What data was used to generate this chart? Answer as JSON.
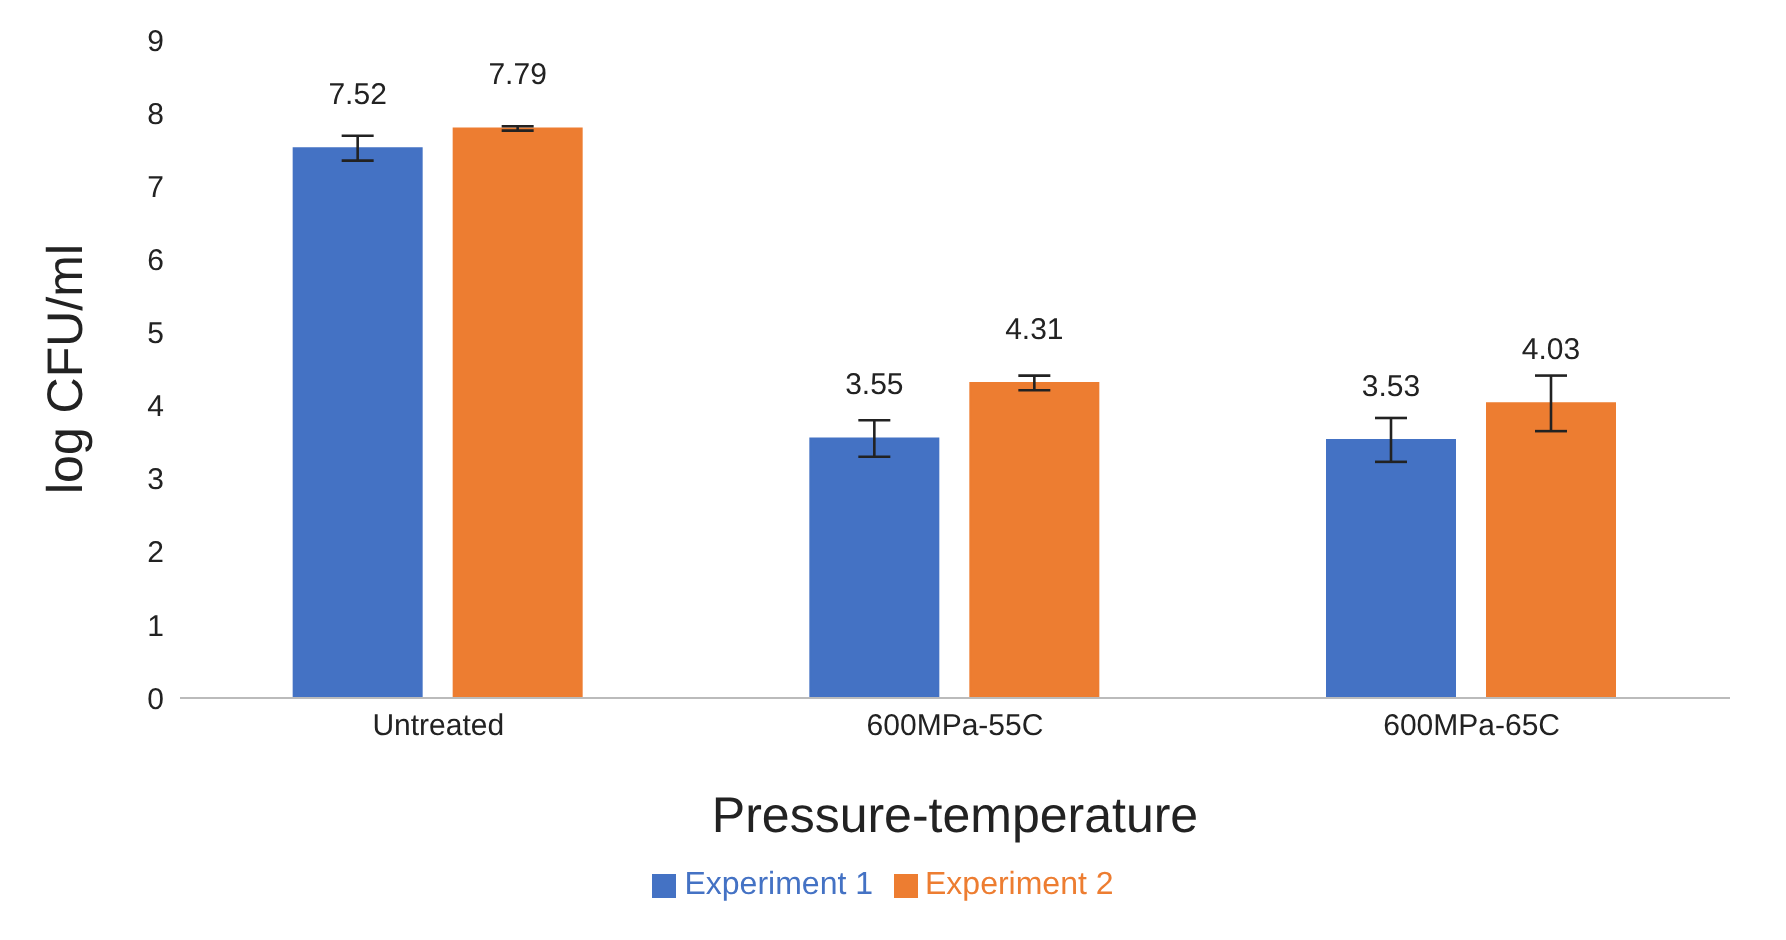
{
  "chart_data": {
    "type": "bar",
    "xlabel": "Pressure-temperature",
    "ylabel": "log CFU/ml",
    "categories": [
      "Untreated",
      "600MPa-55C",
      "600MPa-65C"
    ],
    "series": [
      {
        "name": "Experiment 1",
        "color": "#4472c4",
        "values": [
          7.52,
          3.55,
          3.53
        ],
        "errors": [
          0.17,
          0.25,
          0.3
        ]
      },
      {
        "name": "Experiment 2",
        "color": "#ed7d31",
        "values": [
          7.79,
          4.31,
          4.03
        ],
        "errors": [
          0.03,
          0.1,
          0.38
        ]
      }
    ],
    "ylim": [
      0,
      9
    ],
    "yticks": [
      0,
      1,
      2,
      3,
      4,
      5,
      6,
      7,
      8,
      9
    ],
    "data_labels": true,
    "legend": "bottom",
    "grid": false
  }
}
